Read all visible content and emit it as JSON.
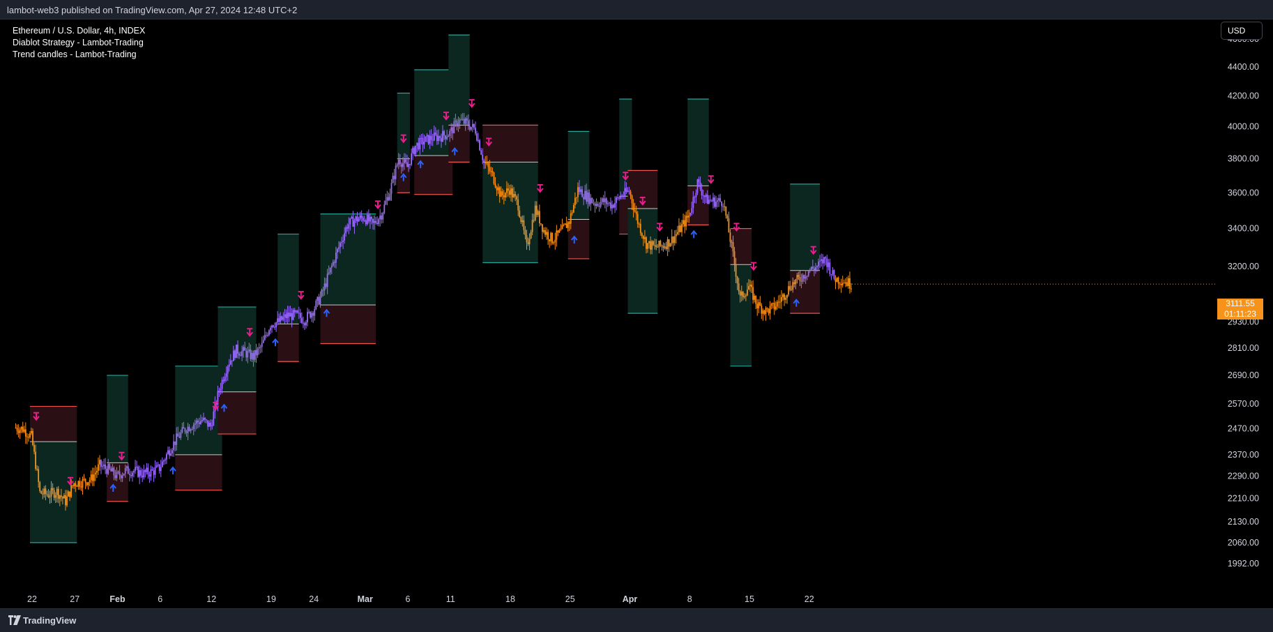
{
  "header": {
    "published": "lambot-web3 published on TradingView.com, Apr 27, 2024 12:48 UTC+2"
  },
  "legend": {
    "symbol": "Ethereum / U.S. Dollar, 4h, INDEX",
    "indicator1": "Diablot Strategy - Lambot-Trading",
    "indicator2": "Trend candles - Lambot-Trading"
  },
  "currency_button": "USD",
  "footer": {
    "brand": "TradingView"
  },
  "last_price": {
    "price": "3111.55",
    "countdown": "01:11:23"
  },
  "colors": {
    "bull": "#9b6cff",
    "bear": "#f7931a",
    "zone_green": "#0c2620",
    "zone_red": "#2a0f14",
    "tp_line": "#26a69a",
    "sl_line": "#ef5350",
    "buy_arrow": "#2962ff",
    "sell_arrow": "#e91e8c"
  },
  "chart_data": {
    "type": "line",
    "symbol": "ETHUSD",
    "interval": "4h",
    "x_tick_labels": [
      "22",
      "27",
      "Feb",
      "6",
      "12",
      "19",
      "24",
      "Mar",
      "6",
      "11",
      "18",
      "25",
      "Apr",
      "8",
      "15",
      "22"
    ],
    "y_tick_labels": [
      "4600.00",
      "4400.00",
      "4200.00",
      "4000.00",
      "3800.00",
      "3600.00",
      "3400.00",
      "3200.00",
      "2930.00",
      "2810.00",
      "2690.00",
      "2570.00",
      "2470.00",
      "2370.00",
      "2290.00",
      "2210.00",
      "2130.00",
      "2060.00",
      "1992.00"
    ],
    "close_path": [
      [
        "2024-01-20",
        2475
      ],
      [
        "2024-01-21",
        2470
      ],
      [
        "2024-01-22",
        2440
      ],
      [
        "2024-01-23",
        2230
      ],
      [
        "2024-01-24",
        2225
      ],
      [
        "2024-01-25",
        2235
      ],
      [
        "2024-01-26",
        2200
      ],
      [
        "2024-01-27",
        2265
      ],
      [
        "2024-01-28",
        2270
      ],
      [
        "2024-01-29",
        2280
      ],
      [
        "2024-01-30",
        2330
      ],
      [
        "2024-01-31",
        2315
      ],
      [
        "2024-02-01",
        2290
      ],
      [
        "2024-02-02",
        2310
      ],
      [
        "2024-02-03",
        2310
      ],
      [
        "2024-02-04",
        2300
      ],
      [
        "2024-02-05",
        2305
      ],
      [
        "2024-02-06",
        2320
      ],
      [
        "2024-02-07",
        2380
      ],
      [
        "2024-02-08",
        2430
      ],
      [
        "2024-02-09",
        2470
      ],
      [
        "2024-02-10",
        2490
      ],
      [
        "2024-02-11",
        2505
      ],
      [
        "2024-02-12",
        2480
      ],
      [
        "2024-02-13",
        2630
      ],
      [
        "2024-02-14",
        2740
      ],
      [
        "2024-02-15",
        2800
      ],
      [
        "2024-02-16",
        2790
      ],
      [
        "2024-02-17",
        2770
      ],
      [
        "2024-02-18",
        2820
      ],
      [
        "2024-02-19",
        2920
      ],
      [
        "2024-02-20",
        2930
      ],
      [
        "2024-02-21",
        2960
      ],
      [
        "2024-02-22",
        2960
      ],
      [
        "2024-02-23",
        2940
      ],
      [
        "2024-02-24",
        2985
      ],
      [
        "2024-02-25",
        3060
      ],
      [
        "2024-02-26",
        3180
      ],
      [
        "2024-02-27",
        3300
      ],
      [
        "2024-02-28",
        3420
      ],
      [
        "2024-02-29",
        3450
      ],
      [
        "2024-03-01",
        3460
      ],
      [
        "2024-03-02",
        3420
      ],
      [
        "2024-03-03",
        3480
      ],
      [
        "2024-03-04",
        3610
      ],
      [
        "2024-03-05",
        3800
      ],
      [
        "2024-03-06",
        3750
      ],
      [
        "2024-03-07",
        3880
      ],
      [
        "2024-03-08",
        3910
      ],
      [
        "2024-03-09",
        3930
      ],
      [
        "2024-03-10",
        3940
      ],
      [
        "2024-03-11",
        3960
      ],
      [
        "2024-03-12",
        4040
      ],
      [
        "2024-03-13",
        4020
      ],
      [
        "2024-03-14",
        3980
      ],
      [
        "2024-03-15",
        3780
      ],
      [
        "2024-03-16",
        3700
      ],
      [
        "2024-03-17",
        3580
      ],
      [
        "2024-03-18",
        3620
      ],
      [
        "2024-03-19",
        3530
      ],
      [
        "2024-03-20",
        3300
      ],
      [
        "2024-03-21",
        3510
      ],
      [
        "2024-03-22",
        3390
      ],
      [
        "2024-03-23",
        3340
      ],
      [
        "2024-03-24",
        3380
      ],
      [
        "2024-03-25",
        3440
      ],
      [
        "2024-03-26",
        3620
      ],
      [
        "2024-03-27",
        3580
      ],
      [
        "2024-03-28",
        3540
      ],
      [
        "2024-03-29",
        3550
      ],
      [
        "2024-03-30",
        3530
      ],
      [
        "2024-03-31",
        3580
      ],
      [
        "2024-04-01",
        3610
      ],
      [
        "2024-04-02",
        3440
      ],
      [
        "2024-04-03",
        3320
      ],
      [
        "2024-04-04",
        3300
      ],
      [
        "2024-04-05",
        3310
      ],
      [
        "2024-04-06",
        3340
      ],
      [
        "2024-04-07",
        3400
      ],
      [
        "2024-04-08",
        3470
      ],
      [
        "2024-04-09",
        3660
      ],
      [
        "2024-04-10",
        3560
      ],
      [
        "2024-04-11",
        3550
      ],
      [
        "2024-04-12",
        3550
      ],
      [
        "2024-04-13",
        3300
      ],
      [
        "2024-04-14",
        3040
      ],
      [
        "2024-04-15",
        3100
      ],
      [
        "2024-04-16",
        3010
      ],
      [
        "2024-04-17",
        2980
      ],
      [
        "2024-04-18",
        3000
      ],
      [
        "2024-04-19",
        3050
      ],
      [
        "2024-04-20",
        3110
      ],
      [
        "2024-04-21",
        3140
      ],
      [
        "2024-04-22",
        3180
      ],
      [
        "2024-04-23",
        3200
      ],
      [
        "2024-04-24",
        3240
      ],
      [
        "2024-04-25",
        3140
      ],
      [
        "2024-04-26",
        3130
      ],
      [
        "2024-04-27",
        3111.55
      ]
    ],
    "signal_zones": [
      {
        "start": "2024-01-22",
        "end": "2024-01-26",
        "entry": 2420,
        "tp": 2060,
        "sl": 2560
      },
      {
        "start": "2024-01-31",
        "end": "2024-02-01",
        "entry": 2340,
        "tp": 2690,
        "sl": 2200
      },
      {
        "start": "2024-02-08",
        "end": "2024-02-12",
        "entry": 2370,
        "tp": 2730,
        "sl": 2240
      },
      {
        "start": "2024-02-13",
        "end": "2024-02-16",
        "entry": 2620,
        "tp": 3000,
        "sl": 2450
      },
      {
        "start": "2024-02-20",
        "end": "2024-02-21",
        "entry": 2920,
        "tp": 3370,
        "sl": 2750
      },
      {
        "start": "2024-02-25",
        "end": "2024-03-01",
        "entry": 3010,
        "tp": 3480,
        "sl": 2830
      },
      {
        "start": "2024-03-05",
        "end": "2024-03-05",
        "entry": 3800,
        "tp": 4220,
        "sl": 3600
      },
      {
        "start": "2024-03-07",
        "end": "2024-03-10",
        "entry": 3820,
        "tp": 4380,
        "sl": 3590
      },
      {
        "start": "2024-03-11",
        "end": "2024-03-12",
        "entry": 4010,
        "tp": 4630,
        "sl": 3780
      },
      {
        "start": "2024-03-15",
        "end": "2024-03-20",
        "entry": 3780,
        "tp": 3220,
        "sl": 4010
      },
      {
        "start": "2024-03-25",
        "end": "2024-03-26",
        "entry": 3450,
        "tp": 3970,
        "sl": 3240
      },
      {
        "start": "2024-03-31",
        "end": "2024-03-31",
        "entry": 3580,
        "tp": 4180,
        "sl": 3370
      },
      {
        "start": "2024-04-01",
        "end": "2024-04-03",
        "entry": 3510,
        "tp": 2970,
        "sl": 3730
      },
      {
        "start": "2024-04-08",
        "end": "2024-04-09",
        "entry": 3640,
        "tp": 4180,
        "sl": 3420
      },
      {
        "start": "2024-04-13",
        "end": "2024-04-14",
        "entry": 3210,
        "tp": 2730,
        "sl": 3400
      },
      {
        "start": "2024-04-20",
        "end": "2024-04-22",
        "entry": 3180,
        "tp": 3650,
        "sl": 2970
      }
    ],
    "buy_signals": [
      "2024-01-31",
      "2024-02-07",
      "2024-02-13",
      "2024-02-19",
      "2024-02-25",
      "2024-03-05",
      "2024-03-07",
      "2024-03-11",
      "2024-03-25",
      "2024-04-08",
      "2024-04-20"
    ],
    "sell_signals": [
      "2024-01-22",
      "2024-01-26",
      "2024-02-01",
      "2024-02-12",
      "2024-02-16",
      "2024-02-22",
      "2024-03-02",
      "2024-03-05",
      "2024-03-10",
      "2024-03-13",
      "2024-03-15",
      "2024-03-21",
      "2024-03-31",
      "2024-04-02",
      "2024-04-04",
      "2024-04-10",
      "2024-04-13",
      "2024-04-15",
      "2024-04-22"
    ],
    "ylim": [
      1992,
      4600
    ],
    "ylog": true,
    "grid": false,
    "last_value": 3111.55
  }
}
